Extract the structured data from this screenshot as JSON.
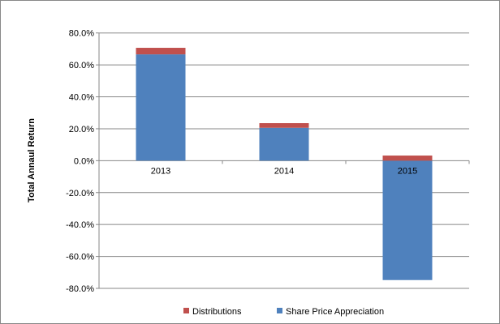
{
  "chart_data": {
    "type": "bar",
    "stacked": true,
    "title": "",
    "xlabel": "",
    "ylabel": "Total Annaul Return",
    "categories": [
      "2013",
      "2014",
      "2015"
    ],
    "series": [
      {
        "name": "Share Price Appreciation",
        "color": "#4F81BD",
        "values": [
          66.6,
          20.6,
          -74.8
        ]
      },
      {
        "name": "Distributions",
        "color": "#C0504D",
        "values": [
          4.1,
          2.9,
          3.2
        ]
      }
    ],
    "ylim": [
      -80,
      80
    ],
    "yticks": [
      80,
      60,
      40,
      20,
      0,
      -20,
      -40,
      -60,
      -80
    ],
    "ytick_labels": [
      "80.0%",
      "60.0%",
      "40.0%",
      "20.0%",
      "0.0%",
      "-20.0%",
      "-40.0%",
      "-60.0%",
      "-80.0%"
    ],
    "grid": true,
    "legend": {
      "position": "bottom",
      "entries": [
        "Distributions",
        "Share Price Appreciation"
      ]
    }
  }
}
